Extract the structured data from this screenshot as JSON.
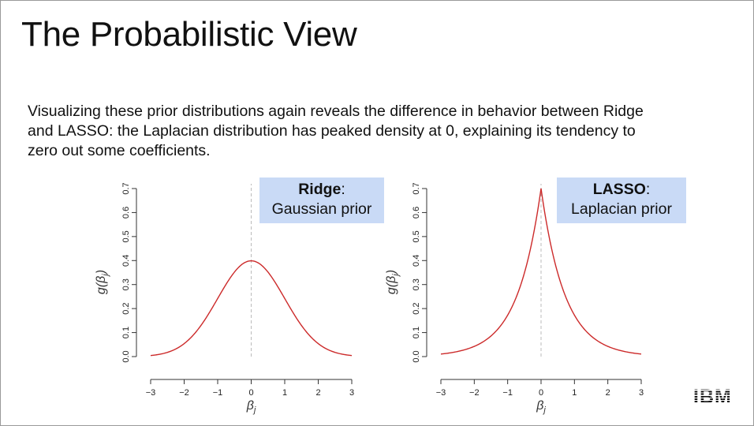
{
  "slide": {
    "title": "The Probabilistic View",
    "body": "Visualizing these prior distributions again reveals the difference in behavior between Ridge and LASSO: the Laplacian distribution has peaked density at 0, explaining its tendency to zero out some coefficients.",
    "logo": "IBM"
  },
  "colors": {
    "curve": "#cc2a2a",
    "legend_bg": "#c9daf6",
    "axis": "#333333",
    "zero_line": "#bbbbbb"
  },
  "chart_data": [
    {
      "type": "line",
      "name": "ridge",
      "distribution": "gaussian",
      "legend": {
        "bold": "Ridge",
        "rest": "Gaussian prior"
      },
      "xlabel": "β",
      "xlabel_sub": "j",
      "ylabel": "g(β",
      "ylabel_sub": "j",
      "xlim": [
        -3,
        3
      ],
      "ylim": [
        0,
        0.7
      ],
      "xticks": [
        "−3",
        "−2",
        "−1",
        "0",
        "1",
        "2",
        "3"
      ],
      "yticks": [
        "0.0",
        "0.1",
        "0.2",
        "0.3",
        "0.4",
        "0.5",
        "0.6",
        "0.7"
      ],
      "peak": {
        "x": 0,
        "y": 0.4
      },
      "grid": false
    },
    {
      "type": "line",
      "name": "lasso",
      "distribution": "laplacian",
      "legend": {
        "bold": "LASSO",
        "rest": "Laplacian prior"
      },
      "xlabel": "β",
      "xlabel_sub": "j",
      "ylabel": "g(β",
      "ylabel_sub": "j",
      "xlim": [
        -3,
        3
      ],
      "ylim": [
        0,
        0.7
      ],
      "xticks": [
        "−3",
        "−2",
        "−1",
        "0",
        "1",
        "2",
        "3"
      ],
      "yticks": [
        "0.0",
        "0.1",
        "0.2",
        "0.3",
        "0.4",
        "0.5",
        "0.6",
        "0.7"
      ],
      "peak": {
        "x": 0,
        "y": 0.7
      },
      "grid": false
    }
  ]
}
